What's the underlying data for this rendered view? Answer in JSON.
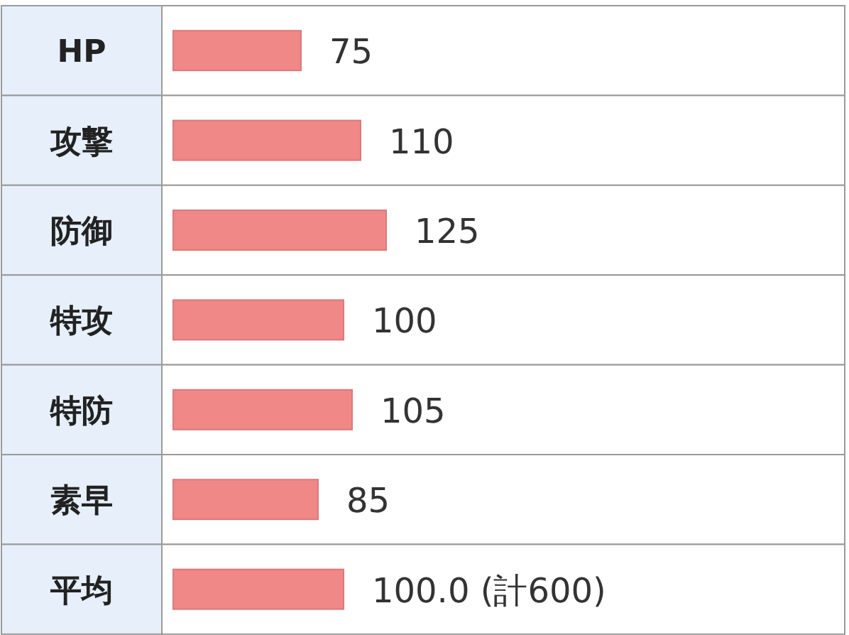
{
  "chart_data": {
    "type": "bar",
    "orientation": "horizontal",
    "categories": [
      "HP",
      "攻撃",
      "防御",
      "特攻",
      "特防",
      "素早",
      "平均"
    ],
    "values": [
      75,
      110,
      125,
      100,
      105,
      85,
      100
    ],
    "value_labels": [
      "75",
      "110",
      "125",
      "100",
      "105",
      "85",
      "100.0 (計600)"
    ],
    "color": "#f08888"
  }
}
